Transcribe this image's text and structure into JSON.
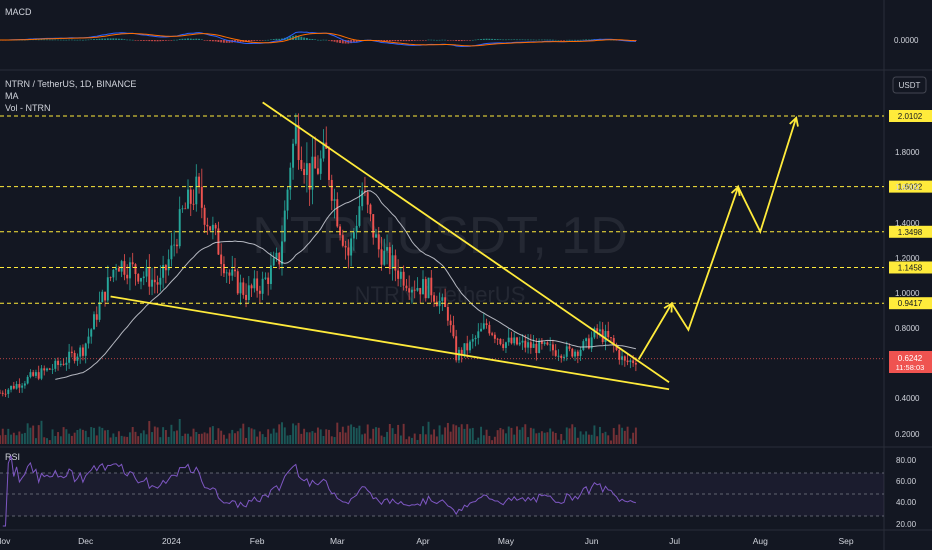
{
  "macd_pane": {
    "title": "MACD",
    "value_label": "0.0000"
  },
  "main_pane": {
    "symbol_title": "NTRN / TetherUS, 1D, BINANCE",
    "ma_label": "MA",
    "vol_label": "Vol - NTRN",
    "currency_button": "USDT",
    "watermark_symbol": "NTRNUSDT, 1D",
    "watermark_name": "NTRN / TetherUS"
  },
  "rsi_pane": {
    "title": "RSI"
  },
  "colors": {
    "up": "#26a69a",
    "down": "#ef5350",
    "yellow": "#ffeb3b",
    "rsi": "#7e57c2",
    "ma": "#d1d4dc",
    "bg": "#131722"
  },
  "chart_data": {
    "type": "candlestick",
    "title": "NTRN / TetherUS, 1D, BINANCE",
    "x_tick_labels": [
      "Nov",
      "Dec",
      "2024",
      "Feb",
      "Mar",
      "Apr",
      "May",
      "Jun",
      "Jul",
      "Aug",
      "Sep"
    ],
    "y_tick_labels": [
      "0.2000",
      "0.4000",
      "0.6000",
      "0.8000",
      "1.0000",
      "1.2000",
      "1.4000",
      "1.6000",
      "1.8000"
    ],
    "y_scale": "log",
    "ylim": [
      0.18,
      2.2
    ],
    "resistance_levels": [
      {
        "value": 2.0102,
        "label": "2.0102"
      },
      {
        "value": 1.6022,
        "label": "1.6022"
      },
      {
        "value": 1.3498,
        "label": "1.3498"
      },
      {
        "value": 1.1458,
        "label": "1.1458"
      },
      {
        "value": 0.9417,
        "label": "0.9417"
      }
    ],
    "current_price": {
      "value": 0.6242,
      "label": "0.6242",
      "countdown": "11:58:03"
    },
    "closes": [
      {
        "date": "2023-10-31",
        "close": 0.43
      },
      {
        "date": "2023-11-10",
        "close": 0.51
      },
      {
        "date": "2023-11-20",
        "close": 0.58
      },
      {
        "date": "2023-11-30",
        "close": 0.68
      },
      {
        "date": "2023-12-06",
        "close": 0.93
      },
      {
        "date": "2023-12-12",
        "close": 1.18
      },
      {
        "date": "2023-12-20",
        "close": 1.12
      },
      {
        "date": "2023-12-28",
        "close": 1.05
      },
      {
        "date": "2024-01-05",
        "close": 1.45
      },
      {
        "date": "2024-01-10",
        "close": 1.58
      },
      {
        "date": "2024-01-16",
        "close": 1.35
      },
      {
        "date": "2024-01-22",
        "close": 1.1
      },
      {
        "date": "2024-01-28",
        "close": 1.0
      },
      {
        "date": "2024-02-03",
        "close": 1.05
      },
      {
        "date": "2024-02-09",
        "close": 1.2
      },
      {
        "date": "2024-02-13",
        "close": 1.75
      },
      {
        "date": "2024-02-15",
        "close": 1.92
      },
      {
        "date": "2024-02-20",
        "close": 1.65
      },
      {
        "date": "2024-02-26",
        "close": 1.78
      },
      {
        "date": "2024-03-01",
        "close": 1.45
      },
      {
        "date": "2024-03-05",
        "close": 1.22
      },
      {
        "date": "2024-03-10",
        "close": 1.58
      },
      {
        "date": "2024-03-16",
        "close": 1.25
      },
      {
        "date": "2024-03-22",
        "close": 1.14
      },
      {
        "date": "2024-03-28",
        "close": 1.05
      },
      {
        "date": "2024-04-04",
        "close": 1.02
      },
      {
        "date": "2024-04-10",
        "close": 0.88
      },
      {
        "date": "2024-04-13",
        "close": 0.64
      },
      {
        "date": "2024-04-18",
        "close": 0.7
      },
      {
        "date": "2024-04-24",
        "close": 0.82
      },
      {
        "date": "2024-04-30",
        "close": 0.72
      },
      {
        "date": "2024-05-08",
        "close": 0.7
      },
      {
        "date": "2024-05-16",
        "close": 0.68
      },
      {
        "date": "2024-05-24",
        "close": 0.66
      },
      {
        "date": "2024-05-30",
        "close": 0.7
      },
      {
        "date": "2024-06-03",
        "close": 0.78
      },
      {
        "date": "2024-06-08",
        "close": 0.72
      },
      {
        "date": "2024-06-13",
        "close": 0.6
      },
      {
        "date": "2024-06-17",
        "close": 0.62
      }
    ],
    "pattern": "falling wedge"
  }
}
